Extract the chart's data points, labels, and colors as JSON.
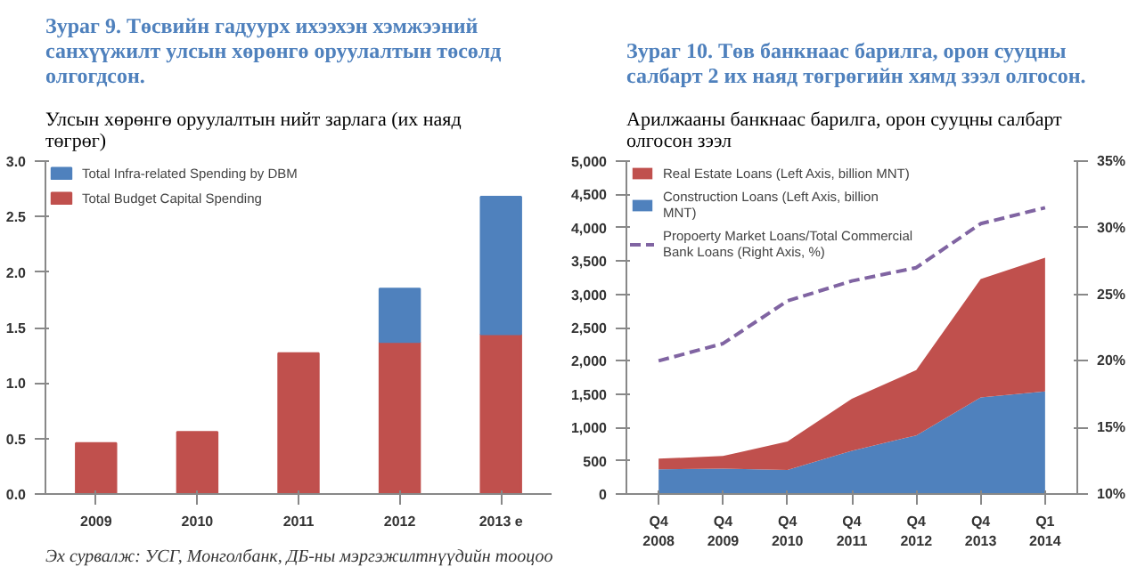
{
  "chart_data": [
    {
      "type": "bar",
      "stacked": true,
      "title": "Зураг 9. Төсвийн гадуурх ихээхэн хэмжээний санхүүжилт улсын хөрөнгө оруулалтын төсөлд олгогдсон.",
      "subtitle": "Улсын хөрөнгө оруулалтын нийт зарлага (их наяд төгрөг)",
      "categories": [
        "2009",
        "2010",
        "2011",
        "2012",
        "2013 e"
      ],
      "series": [
        {
          "name": "Total Budget Capital Spending",
          "color": "#c0504d",
          "values": [
            0.46,
            0.56,
            1.27,
            1.37,
            1.44
          ]
        },
        {
          "name": "Total Infra-related Spending by DBM",
          "color": "#4f81bd",
          "values": [
            null,
            null,
            null,
            0.48,
            1.24
          ]
        }
      ],
      "ylim": [
        0,
        3.0
      ],
      "yticks": [
        {
          "value": 0,
          "label": "0.0"
        },
        {
          "value": 0.5,
          "label": "0.5"
        },
        {
          "value": 1,
          "label": "1.0"
        },
        {
          "value": 1.5,
          "label": "1.5"
        },
        {
          "value": 2,
          "label": "2.0"
        },
        {
          "value": 2.5,
          "label": "2.5"
        },
        {
          "value": 3,
          "label": "3.0"
        }
      ],
      "grid": false,
      "legend": "top left",
      "annotations": [
        "Эх сурвалж: УСГ, Монголбанк, ДБ-ны мэргэжилтнүүдийн тооцоо"
      ]
    },
    {
      "type": "area",
      "stacked": true,
      "title": "Зураг 10. Төв банкнаас барилга, орон сууцны салбарт 2 их наяд төгрөгийн хямд зээл олгосон.",
      "subtitle": "Арилжааны банкнаас барилга, орон сууцны салбарт олгосон зээл",
      "categories": [
        "Q4\n2008",
        "Q4\n2009",
        "Q4\n2010",
        "Q4\n2011",
        "Q4\n2012",
        "Q4\n2013",
        "Q1\n2014"
      ],
      "series": [
        {
          "name": "Construction Loans (Left Axis, billion MNT)",
          "color": "#4f81bd",
          "values": [
            370,
            380,
            360,
            650,
            880,
            1450,
            1540
          ]
        },
        {
          "name": "Real Estate Loans (Left Axis, billion MNT)",
          "color": "#c0504d",
          "values": [
            160,
            190,
            430,
            780,
            980,
            1780,
            2010
          ]
        },
        {
          "name": "Propoerty Market Loans/Total Commercial Bank Loans (Right Axis, %)",
          "type": "line",
          "axis": "y2",
          "line_style": "dashed",
          "color": "#8064a2",
          "values": [
            20,
            21.3,
            24.5,
            26,
            27,
            30.3,
            31.5
          ]
        }
      ],
      "ylim": [
        0,
        5000
      ],
      "yticks": [
        0,
        {
          "value": 500,
          "label": "500"
        },
        {
          "value": 1000,
          "label": "1,000"
        },
        {
          "value": 1500,
          "label": "1,500"
        },
        {
          "value": 2000,
          "label": "2,000"
        },
        {
          "value": 2500,
          "label": "2,500"
        },
        {
          "value": 3000,
          "label": "3,000"
        },
        {
          "value": 3500,
          "label": "3,500"
        },
        {
          "value": 4000,
          "label": "4,000"
        },
        {
          "value": 4500,
          "label": "4,500"
        },
        {
          "value": 5000,
          "label": "5,000"
        }
      ],
      "y2lim": [
        10,
        35
      ],
      "y2ticks": [
        {
          "value": 10,
          "label": "10%"
        },
        {
          "value": 15,
          "label": "15%"
        },
        {
          "value": 20,
          "label": "20%"
        },
        {
          "value": 25,
          "label": "25%"
        },
        {
          "value": 30,
          "label": "30%"
        },
        {
          "value": 35,
          "label": "35%"
        }
      ],
      "grid": false,
      "legend": "top left"
    }
  ]
}
